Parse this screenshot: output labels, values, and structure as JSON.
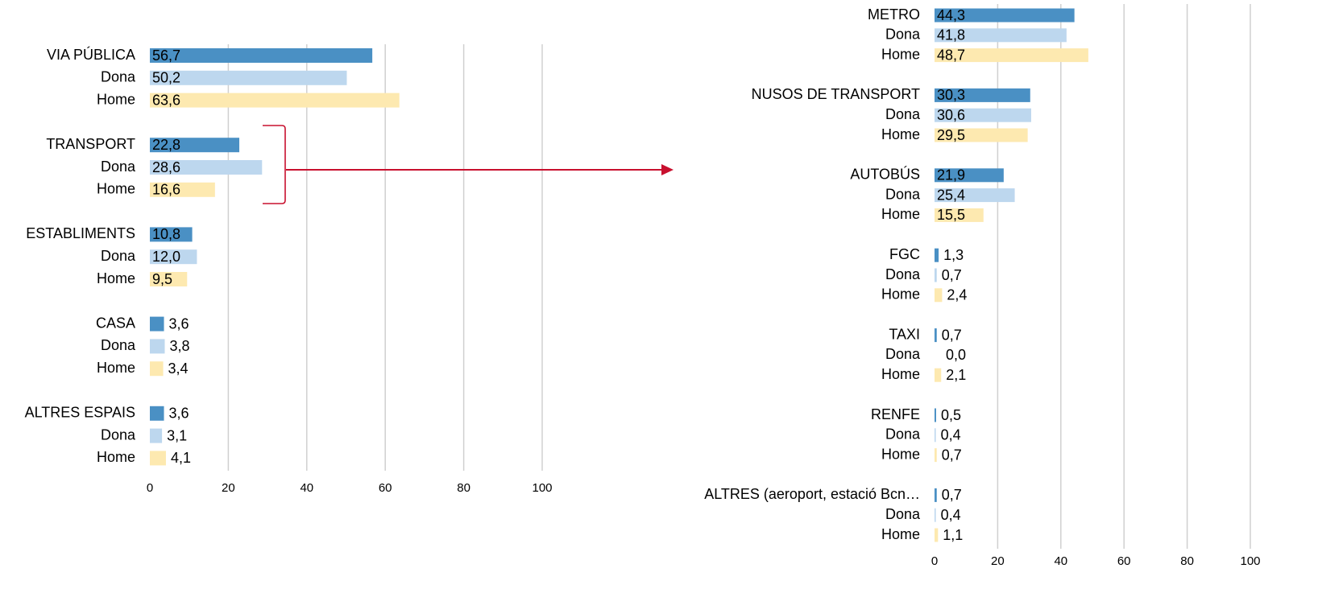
{
  "chart_data": [
    {
      "type": "bar",
      "orientation": "horizontal",
      "categories": [
        "VIA PÚBLICA",
        "Dona",
        "Home",
        "TRANSPORT",
        "Dona",
        "Home",
        "ESTABLIMENTS",
        "Dona",
        "Home",
        "CASA",
        "Dona",
        "Home",
        "ALTRES ESPAIS",
        "Dona",
        "Home"
      ],
      "values": [
        56.7,
        50.2,
        63.6,
        22.8,
        28.6,
        16.6,
        10.8,
        12.0,
        9.5,
        3.6,
        3.8,
        3.4,
        3.6,
        3.1,
        4.1
      ],
      "value_labels": [
        "56,7",
        "50,2",
        "63,6",
        "22,8",
        "28,6",
        "16,6",
        "10,8",
        "12,0",
        "9,5",
        "3,6",
        "3,8",
        "3,4",
        "3,6",
        "3,1",
        "4,1"
      ],
      "colors": [
        "#4a90c4",
        "#bdd7ee",
        "#fde9b0",
        "#4a90c4",
        "#bdd7ee",
        "#fde9b0",
        "#4a90c4",
        "#bdd7ee",
        "#fde9b0",
        "#4a90c4",
        "#bdd7ee",
        "#fde9b0",
        "#4a90c4",
        "#bdd7ee",
        "#fde9b0"
      ],
      "xlim": [
        0,
        100
      ],
      "xticks": [
        0,
        20,
        40,
        60,
        80,
        100
      ],
      "grid": true
    },
    {
      "type": "bar",
      "orientation": "horizontal",
      "categories": [
        "METRO",
        "Dona",
        "Home",
        "NUSOS DE TRANSPORT",
        "Dona",
        "Home",
        "AUTOBÚS",
        "Dona",
        "Home",
        "FGC",
        "Dona",
        "Home",
        "TAXI",
        "Dona",
        "Home",
        "RENFE",
        "Dona",
        "Home",
        "ALTRES (aeroport, estació Bcn…",
        "Dona",
        "Home"
      ],
      "values": [
        44.3,
        41.8,
        48.7,
        30.3,
        30.6,
        29.5,
        21.9,
        25.4,
        15.5,
        1.3,
        0.7,
        2.4,
        0.7,
        0.0,
        2.1,
        0.5,
        0.4,
        0.7,
        0.7,
        0.4,
        1.1
      ],
      "value_labels": [
        "44,3",
        "41,8",
        "48,7",
        "30,3",
        "30,6",
        "29,5",
        "21,9",
        "25,4",
        "15,5",
        "1,3",
        "0,7",
        "2,4",
        "0,7",
        "0,0",
        "2,1",
        "0,5",
        "0,4",
        "0,7",
        "0,7",
        "0,4",
        "1,1"
      ],
      "colors": [
        "#4a90c4",
        "#bdd7ee",
        "#fde9b0",
        "#4a90c4",
        "#bdd7ee",
        "#fde9b0",
        "#4a90c4",
        "#bdd7ee",
        "#fde9b0",
        "#4a90c4",
        "#bdd7ee",
        "#fde9b0",
        "#4a90c4",
        "#bdd7ee",
        "#fde9b0",
        "#4a90c4",
        "#bdd7ee",
        "#fde9b0",
        "#4a90c4",
        "#bdd7ee",
        "#fde9b0"
      ],
      "xlim": [
        0,
        100
      ],
      "xticks": [
        0,
        20,
        40,
        60,
        80,
        100
      ],
      "grid": true
    }
  ]
}
